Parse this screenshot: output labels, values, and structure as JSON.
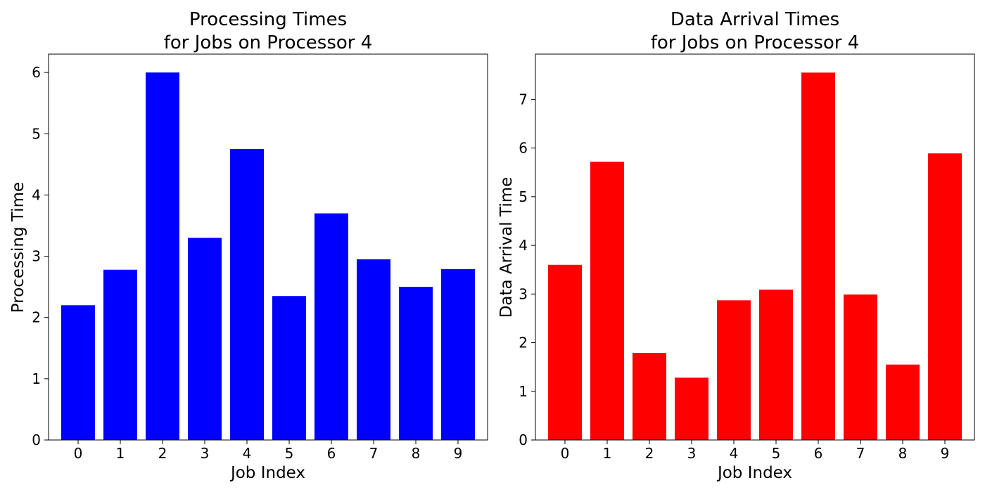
{
  "chart_data": [
    {
      "type": "bar",
      "title_lines": [
        "Processing Times",
        "for Jobs on Processor 4"
      ],
      "xlabel": "Job Index",
      "ylabel": "Processing Time",
      "categories": [
        "0",
        "1",
        "2",
        "3",
        "4",
        "5",
        "6",
        "7",
        "8",
        "9"
      ],
      "values": [
        2.2,
        2.78,
        6.0,
        3.3,
        4.75,
        2.35,
        3.7,
        2.95,
        2.5,
        2.79
      ],
      "ylim": [
        0,
        6.3
      ],
      "yticks": [
        0,
        1,
        2,
        3,
        4,
        5,
        6
      ],
      "color": "#0000ff",
      "grid": false
    },
    {
      "type": "bar",
      "title_lines": [
        "Data Arrival Times",
        "for Jobs on Processor 4"
      ],
      "xlabel": "Job Index",
      "ylabel": "Data Arrival Time",
      "categories": [
        "0",
        "1",
        "2",
        "3",
        "4",
        "5",
        "6",
        "7",
        "8",
        "9"
      ],
      "values": [
        3.6,
        5.72,
        1.79,
        1.28,
        2.87,
        3.09,
        7.55,
        2.99,
        1.55,
        5.89
      ],
      "ylim": [
        0,
        7.93
      ],
      "yticks": [
        0,
        1,
        2,
        3,
        4,
        5,
        6,
        7
      ],
      "color": "#ff0000",
      "grid": false
    }
  ]
}
